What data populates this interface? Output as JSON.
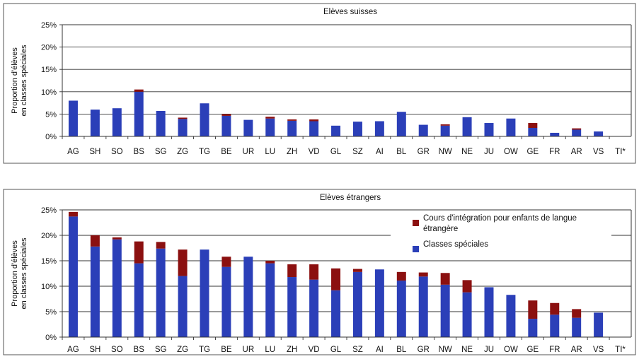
{
  "chart_data": [
    {
      "type": "bar",
      "stacked": true,
      "title": "Elèves suisses",
      "ylabel": "Proportion d'élèves en classes spéciales",
      "ylabel_lines": [
        "Proportion d'élèves",
        "en classes spéciales"
      ],
      "ylim": [
        0,
        25
      ],
      "yticks": [
        "0%",
        "5%",
        "10%",
        "15%",
        "20%",
        "25%"
      ],
      "grid": true,
      "legend": "none",
      "categories": [
        "AG",
        "SH",
        "SO",
        "BS",
        "SG",
        "ZG",
        "TG",
        "BE",
        "UR",
        "LU",
        "ZH",
        "VD",
        "GL",
        "SZ",
        "AI",
        "BL",
        "GR",
        "NW",
        "NE",
        "JU",
        "OW",
        "GE",
        "FR",
        "AR",
        "VS",
        "TI*"
      ],
      "series": [
        {
          "name": "Classes spéciales",
          "color": "#2b3fb8",
          "values": [
            8.0,
            6.0,
            6.3,
            10.0,
            5.7,
            3.9,
            7.4,
            4.6,
            3.7,
            4.0,
            3.5,
            3.4,
            2.4,
            3.3,
            3.4,
            5.5,
            2.6,
            2.4,
            4.3,
            3.0,
            4.0,
            1.9,
            0.8,
            1.5,
            1.1,
            0
          ]
        },
        {
          "name": "Cours d'intégration pour enfants de langue étrangère",
          "color": "#8b1010",
          "values": [
            0,
            0,
            0,
            0.5,
            0,
            0.3,
            0,
            0.4,
            0,
            0.4,
            0.3,
            0.4,
            0,
            0,
            0,
            0,
            0,
            0.3,
            0,
            0,
            0,
            1.1,
            0,
            0.3,
            0,
            0
          ]
        }
      ]
    },
    {
      "type": "bar",
      "stacked": true,
      "title": "Elèves étrangers",
      "ylabel": "Proportion d'élèves en classes spéciales",
      "ylabel_lines": [
        "Proportion d'élèves",
        "en classes spéciales"
      ],
      "ylim": [
        0,
        25
      ],
      "yticks": [
        "0%",
        "5%",
        "10%",
        "15%",
        "20%",
        "25%"
      ],
      "grid": true,
      "legend": "top-right",
      "categories": [
        "AG",
        "SH",
        "SO",
        "BS",
        "SG",
        "ZG",
        "TG",
        "BE",
        "UR",
        "LU",
        "ZH",
        "VD",
        "GL",
        "SZ",
        "AI",
        "BL",
        "GR",
        "NW",
        "NE",
        "JU",
        "OW",
        "GE",
        "FR",
        "AR",
        "VS",
        "TI*"
      ],
      "series": [
        {
          "name": "Classes spéciales",
          "color": "#2b3fb8",
          "values": [
            23.7,
            17.8,
            19.2,
            14.5,
            17.4,
            12.0,
            17.2,
            13.8,
            15.8,
            14.5,
            11.8,
            11.3,
            9.2,
            12.8,
            13.3,
            11.1,
            11.9,
            10.3,
            8.8,
            9.8,
            8.3,
            3.6,
            4.4,
            3.8,
            4.8,
            0
          ]
        },
        {
          "name": "Cours d'intégration pour enfants de langue étrangère",
          "color": "#8b1010",
          "values": [
            0.9,
            2.2,
            0.4,
            4.3,
            1.3,
            5.2,
            0,
            2.0,
            0,
            0.5,
            2.5,
            3.0,
            4.3,
            0.6,
            0,
            1.7,
            0.8,
            2.3,
            2.4,
            0,
            0,
            3.6,
            2.3,
            1.7,
            0,
            0
          ]
        }
      ],
      "legend_entries": [
        {
          "lines": [
            "Cours d'intégration pour enfants de langue",
            "étrangère"
          ],
          "color": "#8b1010"
        },
        {
          "lines": [
            "Classes spéciales"
          ],
          "color": "#2b3fb8"
        }
      ]
    }
  ]
}
